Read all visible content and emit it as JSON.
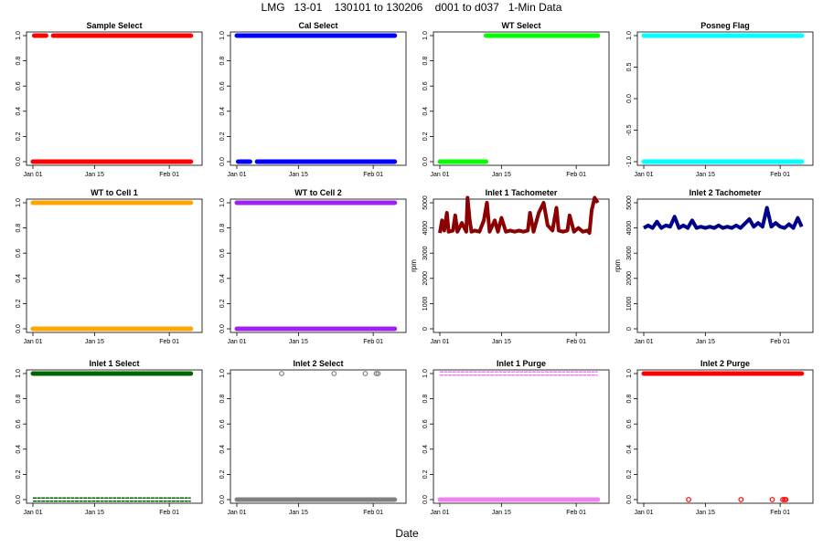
{
  "title": "LMG   13-01    130101 to 130206    d001 to d037   1-Min Data",
  "x_label": "Date",
  "chart_data": [
    {
      "type": "scatter",
      "title": "Sample Select",
      "color": "#ff0000",
      "ylim": [
        0,
        1
      ],
      "yticks": [
        "0.0",
        "0.2",
        "0.4",
        "0.6",
        "0.8",
        "1.0"
      ],
      "ylabel": "",
      "xlim": [
        0,
        37
      ],
      "xticks": [
        "Jan 01",
        "Jan 15",
        "Feb 01"
      ],
      "xtick_days": [
        0,
        14,
        31
      ],
      "segments": [
        {
          "y": 1,
          "from": 0.3,
          "to": 3.0
        },
        {
          "y": 1,
          "from": 4.6,
          "to": 35.9
        },
        {
          "y": 0,
          "from": 0,
          "to": 35.9
        }
      ]
    },
    {
      "type": "scatter",
      "title": "Cal Select",
      "color": "#0000ff",
      "ylim": [
        0,
        1
      ],
      "yticks": [
        "0.0",
        "0.2",
        "0.4",
        "0.6",
        "0.8",
        "1.0"
      ],
      "ylabel": "",
      "xlim": [
        0,
        37
      ],
      "xticks": [
        "Jan 01",
        "Jan 15",
        "Feb 01"
      ],
      "xtick_days": [
        0,
        14,
        31
      ],
      "segments": [
        {
          "y": 1,
          "from": 0,
          "to": 35.9
        },
        {
          "y": 0,
          "from": 0.3,
          "to": 3.0
        },
        {
          "y": 0,
          "from": 4.6,
          "to": 35.9
        }
      ]
    },
    {
      "type": "scatter",
      "title": "WT Select",
      "color": "#00ff00",
      "ylim": [
        0,
        1
      ],
      "yticks": [
        "0.0",
        "0.2",
        "0.4",
        "0.6",
        "0.8",
        "1.0"
      ],
      "ylabel": "",
      "xlim": [
        0,
        37
      ],
      "xticks": [
        "Jan 01",
        "Jan 15",
        "Feb 01"
      ],
      "xtick_days": [
        0,
        14,
        31
      ],
      "segments": [
        {
          "y": 1,
          "from": 10.5,
          "to": 35.9
        },
        {
          "y": 0,
          "from": 0,
          "to": 10.5
        }
      ]
    },
    {
      "type": "scatter",
      "title": "Posneg Flag",
      "color": "#00ffff",
      "ylim": [
        -1,
        1
      ],
      "yticks": [
        "-1.0",
        "-0.5",
        "0.0",
        "0.5",
        "1.0"
      ],
      "ylabel": "",
      "xlim": [
        0,
        37
      ],
      "xticks": [
        "Jan 01",
        "Jan 15",
        "Feb 01"
      ],
      "xtick_days": [
        0,
        14,
        31
      ],
      "segments": [
        {
          "y": 1,
          "from": 0,
          "to": 35.9
        },
        {
          "y": -1,
          "from": 0,
          "to": 35.9
        }
      ]
    },
    {
      "type": "scatter",
      "title": "WT to Cell 1",
      "color": "#ffa500",
      "ylim": [
        0,
        1
      ],
      "yticks": [
        "0.0",
        "0.2",
        "0.4",
        "0.6",
        "0.8",
        "1.0"
      ],
      "ylabel": "",
      "xlim": [
        0,
        37
      ],
      "xticks": [
        "Jan 01",
        "Jan 15",
        "Feb 01"
      ],
      "xtick_days": [
        0,
        14,
        31
      ],
      "segments": [
        {
          "y": 1,
          "from": 0,
          "to": 35.9
        },
        {
          "y": 0,
          "from": 0,
          "to": 35.9
        }
      ]
    },
    {
      "type": "scatter",
      "title": "WT to Cell 2",
      "color": "#a020f0",
      "ylim": [
        0,
        1
      ],
      "yticks": [
        "0.0",
        "0.2",
        "0.4",
        "0.6",
        "0.8",
        "1.0"
      ],
      "ylabel": "",
      "xlim": [
        0,
        37
      ],
      "xticks": [
        "Jan 01",
        "Jan 15",
        "Feb 01"
      ],
      "xtick_days": [
        0,
        14,
        31
      ],
      "segments": [
        {
          "y": 1,
          "from": 0,
          "to": 35.9
        },
        {
          "y": 0,
          "from": 0,
          "to": 35.9
        }
      ]
    },
    {
      "type": "line",
      "title": "Inlet 1 Tachometer",
      "color": "#8b0000",
      "ylim": [
        0,
        5000
      ],
      "yticks": [
        "0",
        "1000",
        "2000",
        "3000",
        "4000",
        "5000"
      ],
      "ylabel": "rpm",
      "xlim": [
        0,
        37
      ],
      "xticks": [
        "Jan 01",
        "Jan 15",
        "Feb 01"
      ],
      "xtick_days": [
        0,
        14,
        31
      ],
      "series": [
        [
          0,
          3800
        ],
        [
          0.5,
          4300
        ],
        [
          1,
          3900
        ],
        [
          1.6,
          4600
        ],
        [
          2,
          3850
        ],
        [
          3,
          3900
        ],
        [
          3.5,
          4500
        ],
        [
          4,
          3850
        ],
        [
          5,
          4200
        ],
        [
          6,
          3850
        ],
        [
          6.3,
          5200
        ],
        [
          6.8,
          4300
        ],
        [
          7.2,
          3850
        ],
        [
          8,
          3900
        ],
        [
          9,
          3850
        ],
        [
          10,
          4300
        ],
        [
          10.7,
          5000
        ],
        [
          11.3,
          3850
        ],
        [
          12.5,
          4300
        ],
        [
          13.2,
          3850
        ],
        [
          14,
          4400
        ],
        [
          15,
          3850
        ],
        [
          16,
          3900
        ],
        [
          17,
          3850
        ],
        [
          18,
          3900
        ],
        [
          19,
          3850
        ],
        [
          20,
          3900
        ],
        [
          20.5,
          4600
        ],
        [
          21.3,
          3850
        ],
        [
          22.5,
          4600
        ],
        [
          23.6,
          5000
        ],
        [
          24.5,
          4100
        ],
        [
          25.6,
          3900
        ],
        [
          26.5,
          4800
        ],
        [
          27,
          3900
        ],
        [
          28,
          3850
        ],
        [
          29,
          3900
        ],
        [
          29.5,
          4500
        ],
        [
          30.5,
          3850
        ],
        [
          31.5,
          4000
        ],
        [
          32.5,
          3850
        ],
        [
          33.5,
          3900
        ],
        [
          34,
          3800
        ],
        [
          34.5,
          4700
        ],
        [
          35.2,
          5200
        ],
        [
          35.9,
          5000
        ]
      ]
    },
    {
      "type": "line",
      "title": "Inlet 2 Tachometer",
      "color": "#00008b",
      "ylim": [
        0,
        5000
      ],
      "yticks": [
        "0",
        "1000",
        "2000",
        "3000",
        "4000",
        "5000"
      ],
      "ylabel": "rpm",
      "xlim": [
        0,
        37
      ],
      "xticks": [
        "Jan 01",
        "Jan 15",
        "Feb 01"
      ],
      "xtick_days": [
        0,
        14,
        31
      ],
      "series": [
        [
          0,
          4000
        ],
        [
          1,
          4100
        ],
        [
          2,
          4000
        ],
        [
          3,
          4250
        ],
        [
          4,
          4000
        ],
        [
          5,
          4100
        ],
        [
          6,
          4050
        ],
        [
          7,
          4450
        ],
        [
          8,
          4000
        ],
        [
          9,
          4100
        ],
        [
          10,
          4000
        ],
        [
          11,
          4300
        ],
        [
          12,
          4000
        ],
        [
          13,
          4050
        ],
        [
          14,
          4000
        ],
        [
          15,
          4050
        ],
        [
          16,
          4000
        ],
        [
          17,
          4100
        ],
        [
          18,
          4000
        ],
        [
          19,
          4050
        ],
        [
          20,
          4000
        ],
        [
          21,
          4100
        ],
        [
          22,
          4000
        ],
        [
          24,
          4350
        ],
        [
          25,
          4050
        ],
        [
          26,
          4200
        ],
        [
          27,
          4050
        ],
        [
          28,
          4800
        ],
        [
          29,
          4050
        ],
        [
          30,
          4200
        ],
        [
          31,
          4050
        ],
        [
          32,
          4000
        ],
        [
          33,
          4150
        ],
        [
          34,
          4000
        ],
        [
          35,
          4400
        ],
        [
          35.9,
          4050
        ]
      ]
    },
    {
      "type": "scatter",
      "title": "Inlet 1 Select",
      "color": "#006400",
      "ylim": [
        0,
        1
      ],
      "yticks": [
        "0.0",
        "0.2",
        "0.4",
        "0.6",
        "0.8",
        "1.0"
      ],
      "ylabel": "",
      "xlim": [
        0,
        37
      ],
      "xticks": [
        "Jan 01",
        "Jan 15",
        "Feb 01"
      ],
      "xtick_days": [
        0,
        14,
        31
      ],
      "segments": [
        {
          "y": 1,
          "from": 0,
          "to": 35.9
        },
        {
          "y": 0,
          "from": 0,
          "to": 35.9,
          "open": true
        }
      ]
    },
    {
      "type": "scatter",
      "title": "Inlet 2 Select",
      "color": "#808080",
      "ylim": [
        0,
        1
      ],
      "yticks": [
        "0.0",
        "0.2",
        "0.4",
        "0.6",
        "0.8",
        "1.0"
      ],
      "ylabel": "",
      "xlim": [
        0,
        37
      ],
      "xticks": [
        "Jan 01",
        "Jan 15",
        "Feb 01"
      ],
      "xtick_days": [
        0,
        14,
        31
      ],
      "segments": [
        {
          "y": 0,
          "from": 0,
          "to": 35.9
        }
      ],
      "points": [
        {
          "x": 10.2,
          "y": 1
        },
        {
          "x": 22.1,
          "y": 1
        },
        {
          "x": 29.2,
          "y": 1
        },
        {
          "x": 31.7,
          "y": 1
        },
        {
          "x": 32.1,
          "y": 1
        }
      ]
    },
    {
      "type": "scatter",
      "title": "Inlet 1 Purge",
      "color": "#ee82ee",
      "ylim": [
        0,
        1
      ],
      "yticks": [
        "0.0",
        "0.2",
        "0.4",
        "0.6",
        "0.8",
        "1.0"
      ],
      "ylabel": "",
      "xlim": [
        0,
        37
      ],
      "xticks": [
        "Jan 01",
        "Jan 15",
        "Feb 01"
      ],
      "xtick_days": [
        0,
        14,
        31
      ],
      "segments": [
        {
          "y": 1,
          "from": 0,
          "to": 35.9,
          "open": true
        },
        {
          "y": 0,
          "from": 0,
          "to": 35.9
        }
      ]
    },
    {
      "type": "scatter",
      "title": "Inlet 2 Purge",
      "color": "#ff0000",
      "ylim": [
        0,
        1
      ],
      "yticks": [
        "0.0",
        "0.2",
        "0.4",
        "0.6",
        "0.8",
        "1.0"
      ],
      "ylabel": "",
      "xlim": [
        0,
        37
      ],
      "xticks": [
        "Jan 01",
        "Jan 15",
        "Feb 01"
      ],
      "xtick_days": [
        0,
        14,
        31
      ],
      "segments": [
        {
          "y": 1,
          "from": 0,
          "to": 35.9
        }
      ],
      "points": [
        {
          "x": 10.2,
          "y": 0
        },
        {
          "x": 22.1,
          "y": 0
        },
        {
          "x": 29.2,
          "y": 0
        },
        {
          "x": 31.6,
          "y": 0
        },
        {
          "x": 32.0,
          "y": 0
        },
        {
          "x": 32.3,
          "y": 0
        }
      ]
    }
  ]
}
